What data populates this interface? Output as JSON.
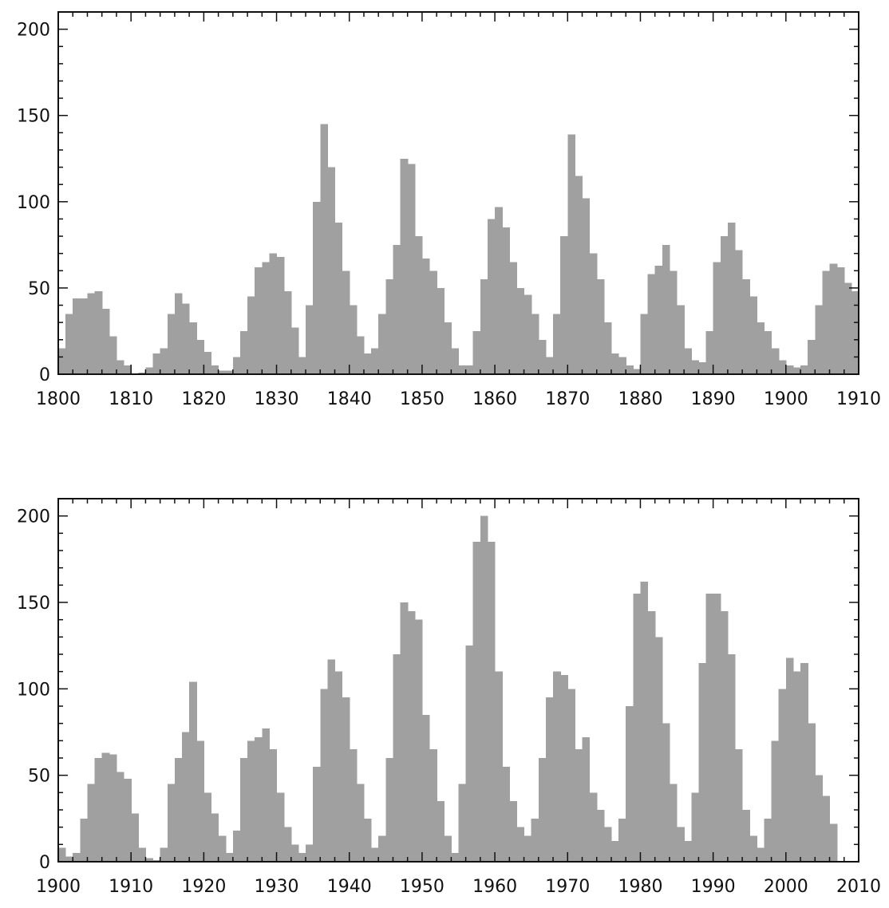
{
  "chart_data": [
    {
      "type": "area",
      "title": "",
      "xlabel": "",
      "ylabel": "",
      "xlim": [
        1800,
        1910
      ],
      "ylim": [
        0,
        210
      ],
      "grid": false,
      "fill_color": "#a0a0a0",
      "x_ticks": [
        "1800",
        "1810",
        "1820",
        "1830",
        "1840",
        "1850",
        "1860",
        "1870",
        "1880",
        "1890",
        "1900",
        "1910"
      ],
      "y_ticks": [
        "0",
        "50",
        "100",
        "150",
        "200"
      ],
      "series": [
        {
          "x": [
            1800,
            1801,
            1802,
            1803,
            1804,
            1805,
            1806,
            1807,
            1808,
            1809,
            1810,
            1811,
            1812,
            1813,
            1814,
            1815,
            1816,
            1817,
            1818,
            1819,
            1820,
            1821,
            1822,
            1823,
            1824,
            1825,
            1826,
            1827,
            1828,
            1829,
            1830,
            1831,
            1832,
            1833,
            1834,
            1835,
            1836,
            1837,
            1838,
            1839,
            1840,
            1841,
            1842,
            1843,
            1844,
            1845,
            1846,
            1847,
            1848,
            1849,
            1850,
            1851,
            1852,
            1853,
            1854,
            1855,
            1856,
            1857,
            1858,
            1859,
            1860,
            1861,
            1862,
            1863,
            1864,
            1865,
            1866,
            1867,
            1868,
            1869,
            1870,
            1871,
            1872,
            1873,
            1874,
            1875,
            1876,
            1877,
            1878,
            1879,
            1880,
            1881,
            1882,
            1883,
            1884,
            1885,
            1886,
            1887,
            1888,
            1889,
            1890,
            1891,
            1892,
            1893,
            1894,
            1895,
            1896,
            1897,
            1898,
            1899,
            1900,
            1901,
            1902,
            1903,
            1904,
            1905,
            1906,
            1907,
            1908,
            1909,
            1910
          ],
          "y": [
            15,
            35,
            44,
            44,
            47,
            48,
            38,
            22,
            8,
            5,
            0,
            1,
            4,
            12,
            15,
            35,
            47,
            41,
            30,
            20,
            13,
            5,
            2,
            2,
            10,
            25,
            45,
            62,
            65,
            70,
            68,
            48,
            27,
            10,
            40,
            100,
            145,
            120,
            88,
            60,
            40,
            22,
            12,
            15,
            35,
            55,
            75,
            125,
            122,
            80,
            67,
            60,
            50,
            30,
            15,
            5,
            5,
            25,
            55,
            90,
            97,
            85,
            65,
            50,
            46,
            35,
            20,
            10,
            35,
            80,
            139,
            115,
            102,
            70,
            55,
            30,
            12,
            10,
            5,
            3,
            35,
            58,
            63,
            75,
            60,
            40,
            15,
            8,
            7,
            25,
            65,
            80,
            88,
            72,
            55,
            45,
            30,
            25,
            15,
            8,
            5,
            4,
            5,
            20,
            40,
            60,
            64,
            62,
            53,
            48,
            30
          ]
        }
      ]
    },
    {
      "type": "area",
      "title": "",
      "xlabel": "",
      "ylabel": "",
      "xlim": [
        1900,
        2010
      ],
      "ylim": [
        0,
        210
      ],
      "grid": false,
      "fill_color": "#a0a0a0",
      "x_ticks": [
        "1900",
        "1910",
        "1920",
        "1930",
        "1940",
        "1950",
        "1960",
        "1970",
        "1980",
        "1990",
        "2000",
        "2010"
      ],
      "y_ticks": [
        "0",
        "50",
        "100",
        "150",
        "200"
      ],
      "series": [
        {
          "x": [
            1900,
            1901,
            1902,
            1903,
            1904,
            1905,
            1906,
            1907,
            1908,
            1909,
            1910,
            1911,
            1912,
            1913,
            1914,
            1915,
            1916,
            1917,
            1918,
            1919,
            1920,
            1921,
            1922,
            1923,
            1924,
            1925,
            1926,
            1927,
            1928,
            1929,
            1930,
            1931,
            1932,
            1933,
            1934,
            1935,
            1936,
            1937,
            1938,
            1939,
            1940,
            1941,
            1942,
            1943,
            1944,
            1945,
            1946,
            1947,
            1948,
            1949,
            1950,
            1951,
            1952,
            1953,
            1954,
            1955,
            1956,
            1957,
            1958,
            1959,
            1960,
            1961,
            1962,
            1963,
            1964,
            1965,
            1966,
            1967,
            1968,
            1969,
            1970,
            1971,
            1972,
            1973,
            1974,
            1975,
            1976,
            1977,
            1978,
            1979,
            1980,
            1981,
            1982,
            1983,
            1984,
            1985,
            1986,
            1987,
            1988,
            1989,
            1990,
            1991,
            1992,
            1993,
            1994,
            1995,
            1996,
            1997,
            1998,
            1999,
            2000,
            2001,
            2002,
            2003,
            2004,
            2005,
            2006
          ],
          "y": [
            8,
            3,
            5,
            25,
            45,
            60,
            63,
            62,
            52,
            48,
            28,
            8,
            2,
            1,
            8,
            45,
            60,
            75,
            104,
            70,
            40,
            28,
            15,
            5,
            18,
            60,
            70,
            72,
            77,
            65,
            40,
            20,
            10,
            5,
            10,
            55,
            100,
            117,
            110,
            95,
            65,
            45,
            25,
            8,
            15,
            60,
            120,
            150,
            145,
            140,
            85,
            65,
            35,
            15,
            5,
            45,
            125,
            185,
            200,
            185,
            110,
            55,
            35,
            20,
            15,
            25,
            60,
            95,
            110,
            108,
            100,
            65,
            72,
            40,
            30,
            20,
            12,
            25,
            90,
            155,
            162,
            145,
            130,
            80,
            45,
            20,
            12,
            40,
            115,
            155,
            155,
            145,
            120,
            65,
            30,
            15,
            8,
            25,
            70,
            100,
            118,
            110,
            115,
            80,
            50,
            38,
            22
          ]
        }
      ]
    }
  ]
}
